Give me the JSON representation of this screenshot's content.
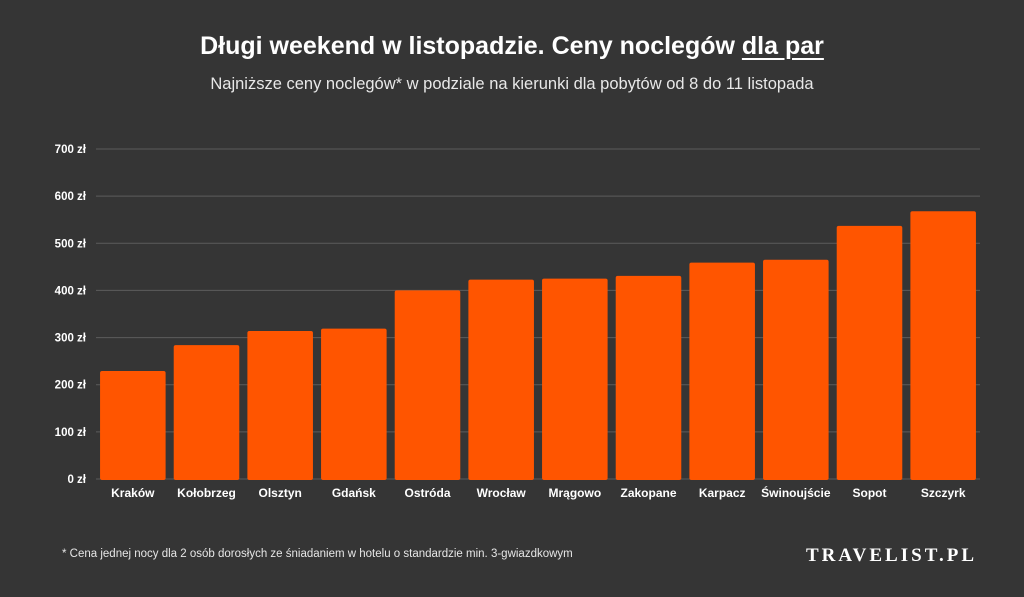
{
  "header": {
    "title_main": "Długi weekend w listopadzie. Ceny noclegów ",
    "title_emphasis": "dla par",
    "subtitle": "Najniższe ceny noclegów* w podziale na kierunki dla pobytów od 8 do 11 listopada"
  },
  "chart_data": {
    "type": "bar",
    "categories": [
      "Kraków",
      "Kołobrzeg",
      "Olsztyn",
      "Gdańsk",
      "Ostróda",
      "Wrocław",
      "Mrągowo",
      "Zakopane",
      "Karpacz",
      "Świnoujście",
      "Sopot",
      "Szczyrk"
    ],
    "values": [
      229,
      284,
      314,
      319,
      400,
      423,
      425,
      431,
      459,
      465,
      537,
      568
    ],
    "ylim": [
      0,
      700
    ],
    "yticks": [
      0,
      100,
      200,
      300,
      400,
      500,
      600,
      700
    ],
    "ytick_labels": [
      "0 zł",
      "100 zł",
      "200 zł",
      "300 zł",
      "400 zł",
      "500 zł",
      "600 zł",
      "700 zł"
    ],
    "grid": true,
    "bar_color": "#ff5500",
    "grid_color": "#5c5c5c"
  },
  "footer": {
    "footnote": "* Cena jednej nocy dla 2 osób dorosłych ze śniadaniem w hotelu o standardzie min. 3-gwiazdkowym",
    "brand": "TRAVELIST.PL"
  },
  "colors": {
    "background": "#353535",
    "text": "#ffffff",
    "accent": "#ff5500"
  }
}
